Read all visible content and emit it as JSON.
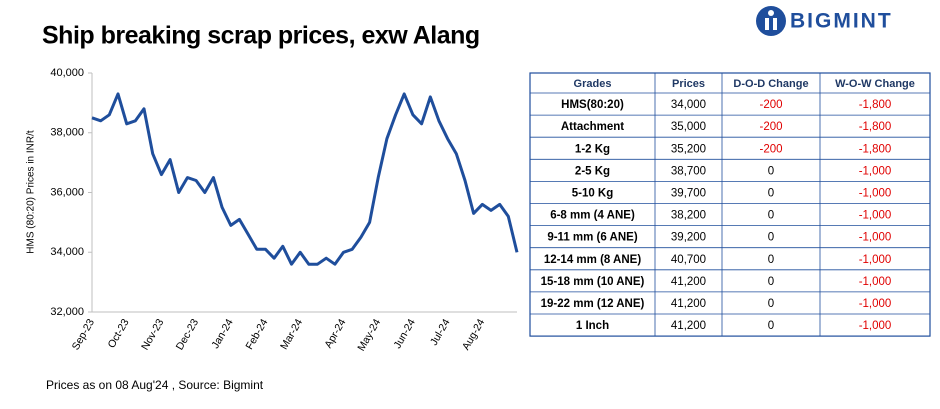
{
  "header": {
    "logo": "BIGMINT"
  },
  "chart_data": {
    "type": "line",
    "title": "Ship breaking scrap prices, exw Alang",
    "y_label": "HMS (80:20) Prices in INR/t",
    "color": "#1f4e9c",
    "grid": false,
    "categories": [
      "Sep-23",
      null,
      null,
      null,
      "Oct-23",
      null,
      null,
      null,
      "Nov-23",
      null,
      null,
      null,
      "Dec-23",
      null,
      null,
      null,
      "Jan-24",
      null,
      null,
      null,
      "Feb-24",
      null,
      null,
      null,
      "Mar-24",
      null,
      null,
      null,
      null,
      "Apr-24",
      null,
      null,
      null,
      "May-24",
      null,
      null,
      null,
      "Jun-24",
      null,
      null,
      null,
      "Jul-24",
      null,
      null,
      null,
      "Aug-24",
      null,
      null,
      null,
      null
    ],
    "values": [
      38500,
      38400,
      38600,
      39300,
      38300,
      38400,
      38800,
      37300,
      36600,
      37100,
      36000,
      36500,
      36400,
      36000,
      36500,
      35500,
      34900,
      35100,
      34600,
      34100,
      34100,
      33800,
      34200,
      33600,
      34000,
      33600,
      33600,
      33800,
      33600,
      34000,
      34100,
      34500,
      35000,
      36500,
      37800,
      38600,
      39300,
      38600,
      38300,
      39200,
      38400,
      37800,
      37300,
      36400,
      35300,
      35600,
      35400,
      35600,
      35200,
      34000
    ],
    "ylim": [
      32000,
      40000
    ],
    "yticks": [
      {
        "value": 32000,
        "label": "32,000"
      },
      {
        "value": 34000,
        "label": "34,000"
      },
      {
        "value": 36000,
        "label": "36,000"
      },
      {
        "value": 38000,
        "label": "38,000"
      },
      {
        "value": 40000,
        "label": "40,000"
      }
    ]
  },
  "table": {
    "columns": [
      "Grades",
      "Prices",
      "D-O-D Change",
      "W-O-W Change"
    ],
    "rows": [
      [
        "HMS(80:20)",
        "34,000",
        "-200",
        "-1,800"
      ],
      [
        "Attachment",
        "35,000",
        "-200",
        "-1,800"
      ],
      [
        "1-2 Kg",
        "35,200",
        "-200",
        "-1,800"
      ],
      [
        "2-5 Kg",
        "38,700",
        "0",
        "-1,000"
      ],
      [
        "5-10 Kg",
        "39,700",
        "0",
        "-1,000"
      ],
      [
        "6-8 mm (4 ANE)",
        "38,200",
        "0",
        "-1,000"
      ],
      [
        "9-11 mm (6 ANE)",
        "39,200",
        "0",
        "-1,000"
      ],
      [
        "12-14 mm (8 ANE)",
        "40,700",
        "0",
        "-1,000"
      ],
      [
        "15-18 mm (10 ANE)",
        "41,200",
        "0",
        "-1,000"
      ],
      [
        "19-22 mm (12 ANE)",
        "41,200",
        "0",
        "-1,000"
      ],
      [
        "1 Inch",
        "41,200",
        "0",
        "-1,000"
      ]
    ]
  },
  "footer": "Prices as on 08 Aug'24 , Source: Bigmint"
}
